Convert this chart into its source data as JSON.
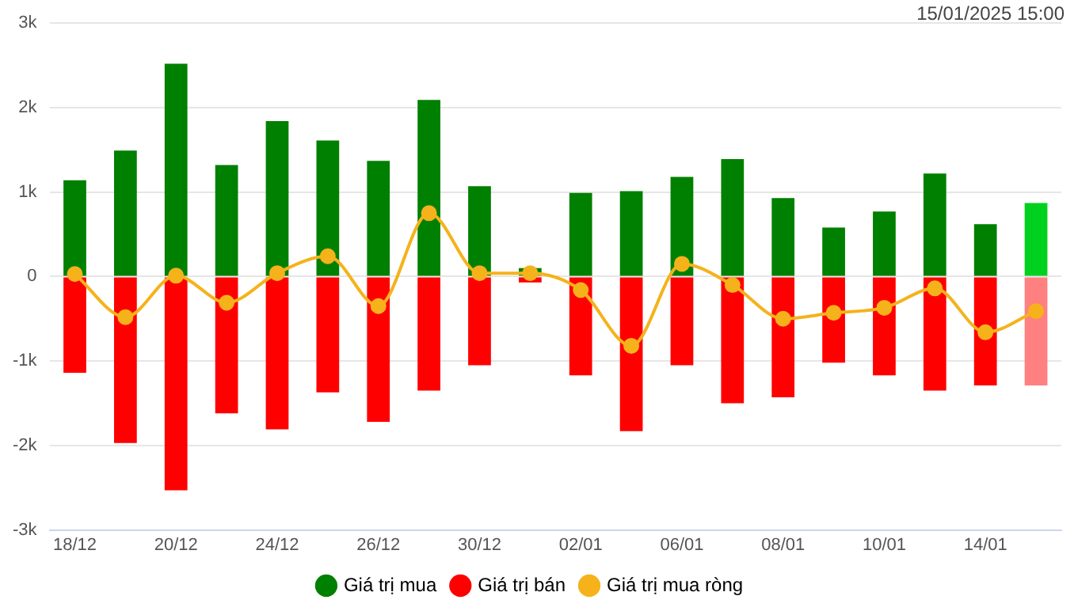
{
  "chart_data": {
    "type": "bar",
    "stacked": true,
    "categories": [
      "18/12",
      null,
      "20/12",
      null,
      "24/12",
      null,
      "26/12",
      null,
      "30/12",
      null,
      "02/01",
      null,
      "06/01",
      null,
      "08/01",
      null,
      "10/01",
      null,
      "14/01",
      null
    ],
    "series": [
      {
        "name": "Giá trị mua",
        "color": "#008000",
        "colors": [
          "#008000",
          "#008000",
          "#008000",
          "#008000",
          "#008000",
          "#008000",
          "#008000",
          "#008000",
          "#008000",
          "#008000",
          "#008000",
          "#008000",
          "#008000",
          "#008000",
          "#008000",
          "#008000",
          "#008000",
          "#008000",
          "#008000",
          "#00d11f"
        ],
        "values": [
          1140,
          1490,
          2520,
          1320,
          1840,
          1610,
          1370,
          2090,
          1070,
          100,
          990,
          1010,
          1180,
          1390,
          930,
          580,
          770,
          1220,
          620,
          870
        ]
      },
      {
        "name": "Giá trị bán",
        "color": "#ff0000",
        "colors": [
          "#ff0000",
          "#ff0000",
          "#ff0000",
          "#ff0000",
          "#ff0000",
          "#ff0000",
          "#ff0000",
          "#ff0000",
          "#ff0000",
          "#ff0000",
          "#ff0000",
          "#ff0000",
          "#ff0000",
          "#ff0000",
          "#ff0000",
          "#ff0000",
          "#ff0000",
          "#ff0000",
          "#ff0000",
          "#ff8080"
        ],
        "values": [
          -1140,
          -1970,
          -2530,
          -1620,
          -1810,
          -1370,
          -1720,
          -1350,
          -1050,
          -70,
          -1170,
          -1830,
          -1050,
          -1500,
          -1430,
          -1020,
          -1170,
          -1350,
          -1290,
          -1290
        ]
      },
      {
        "name": "Giá trị mua ròng",
        "type": "line",
        "color": "#f5b21b",
        "marker": "circle",
        "values": [
          30,
          -480,
          10,
          -310,
          40,
          240,
          -350,
          750,
          40,
          40,
          -160,
          -820,
          150,
          -100,
          -500,
          -430,
          -370,
          -140,
          -660,
          -410
        ]
      }
    ],
    "ylim": [
      -3000,
      3000
    ],
    "yticks": [
      {
        "value": -3000,
        "label": "-3k"
      },
      {
        "value": -2000,
        "label": "-2k"
      },
      {
        "value": -1000,
        "label": "-1k"
      },
      0,
      {
        "value": 1000,
        "label": "1k"
      },
      {
        "value": 2000,
        "label": "2k"
      },
      {
        "value": 3000,
        "label": "3k"
      }
    ],
    "grid": "y",
    "legend": "bottom",
    "annotations": [
      "15/01/2025 15:00"
    ]
  }
}
